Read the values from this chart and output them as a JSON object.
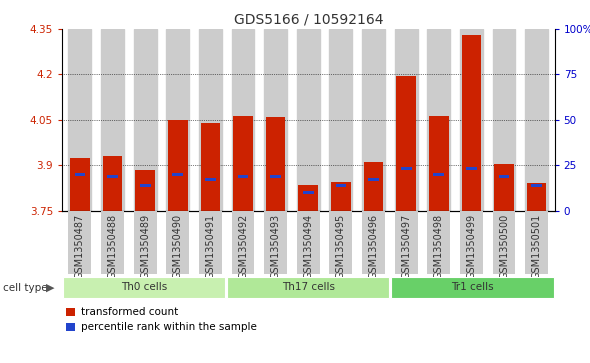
{
  "title": "GDS5166 / 10592164",
  "samples": [
    "GSM1350487",
    "GSM1350488",
    "GSM1350489",
    "GSM1350490",
    "GSM1350491",
    "GSM1350492",
    "GSM1350493",
    "GSM1350494",
    "GSM1350495",
    "GSM1350496",
    "GSM1350497",
    "GSM1350498",
    "GSM1350499",
    "GSM1350500",
    "GSM1350501"
  ],
  "transformed_counts": [
    3.925,
    3.93,
    3.885,
    4.048,
    4.038,
    4.063,
    4.058,
    3.835,
    3.845,
    3.91,
    4.195,
    4.062,
    4.33,
    3.905,
    3.84
  ],
  "percentile_ranks": [
    20,
    19,
    14,
    20,
    17,
    19,
    19,
    10,
    14,
    17,
    23,
    20,
    23,
    19,
    14
  ],
  "cell_groups": [
    {
      "label": "Th0 cells",
      "start": 0,
      "end": 5,
      "color": "#c8f0b0"
    },
    {
      "label": "Th17 cells",
      "start": 5,
      "end": 10,
      "color": "#b0e898"
    },
    {
      "label": "Tr1 cells",
      "start": 10,
      "end": 15,
      "color": "#68d068"
    }
  ],
  "y_min": 3.75,
  "y_max": 4.35,
  "y_ticks": [
    3.75,
    3.9,
    4.05,
    4.2,
    4.35
  ],
  "y_tick_labels": [
    "3.75",
    "3.9",
    "4.05",
    "4.2",
    "4.35"
  ],
  "y2_ticks": [
    0,
    25,
    50,
    75,
    100
  ],
  "y2_tick_labels": [
    "0",
    "25",
    "50",
    "75",
    "100%"
  ],
  "bar_color": "#cc2200",
  "blue_color": "#2244cc",
  "bg_color": "#cccccc",
  "title_fontsize": 10,
  "tick_fontsize": 7.5,
  "label_fontsize": 8
}
